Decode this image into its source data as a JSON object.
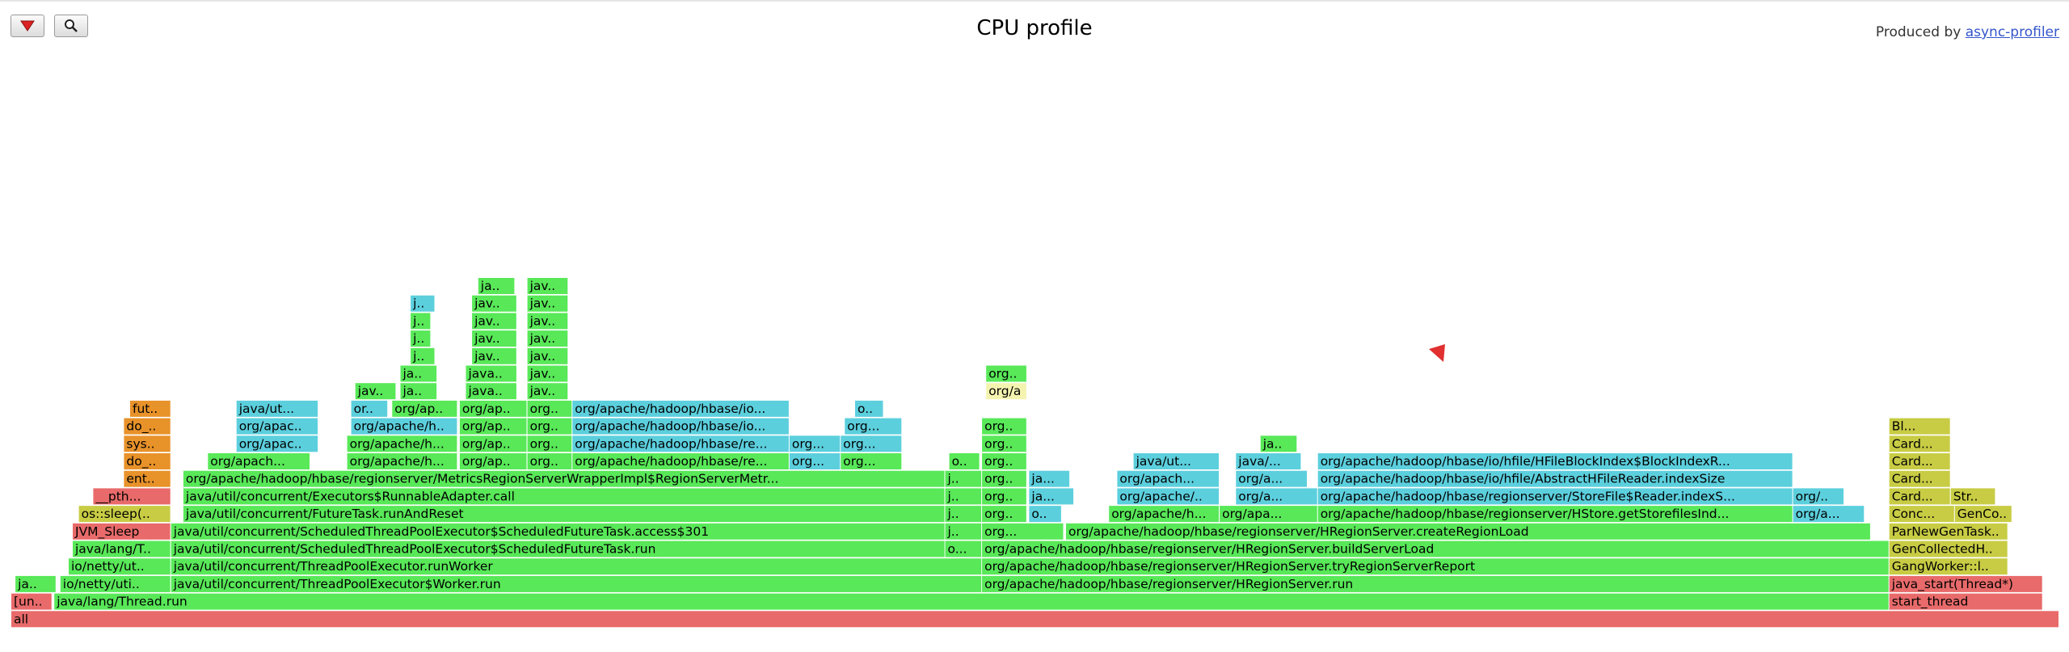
{
  "title": "CPU profile",
  "produced_by": {
    "prefix": "Produced by ",
    "link": "async-profiler"
  },
  "toolbar": {
    "reverse_icon": "reverse-triangle-icon",
    "search_icon": "magnifier-icon"
  },
  "colors": {
    "java": "#58e858",
    "aqua": "#5ccfdd",
    "native": "#e8922a",
    "kernel": "#e86a6a",
    "cpp": "#c8cc44",
    "highlight": "#f4f4b0",
    "jit": "#8ee88e"
  },
  "chart_data": {
    "type": "flamegraph",
    "unit": "samples (fraction of total width)",
    "frames": [
      {
        "d": 0,
        "s": 0.0,
        "w": 1.0,
        "n": "all",
        "c": "kernel"
      },
      {
        "d": 1,
        "s": 0.0,
        "w": 0.02,
        "n": "[un..",
        "c": "kernel"
      },
      {
        "d": 1,
        "s": 0.021,
        "w": 0.896,
        "n": "java/lang/Thread.run",
        "c": "java"
      },
      {
        "d": 1,
        "s": 0.917,
        "w": 0.075,
        "n": "start_thread",
        "c": "kernel"
      },
      {
        "d": 2,
        "s": 0.002,
        "w": 0.02,
        "n": "ja..",
        "c": "java"
      },
      {
        "d": 2,
        "s": 0.024,
        "w": 0.054,
        "n": "io/netty/uti..",
        "c": "java"
      },
      {
        "d": 2,
        "s": 0.078,
        "w": 0.396,
        "n": "java/util/concurrent/ThreadPoolExecutor$Worker.run",
        "c": "java"
      },
      {
        "d": 2,
        "s": 0.474,
        "w": 0.443,
        "n": "org/apache/hadoop/hbase/regionserver/HRegionServer.run",
        "c": "java"
      },
      {
        "d": 2,
        "s": 0.917,
        "w": 0.075,
        "n": "java_start(Thread*)",
        "c": "kernel"
      },
      {
        "d": 3,
        "s": 0.028,
        "w": 0.05,
        "n": "io/netty/ut...",
        "c": "java"
      },
      {
        "d": 3,
        "s": 0.078,
        "w": 0.396,
        "n": "java/util/concurrent/ThreadPoolExecutor.runWorker",
        "c": "java"
      },
      {
        "d": 3,
        "s": 0.474,
        "w": 0.443,
        "n": "org/apache/hadoop/hbase/regionserver/HRegionServer.tryRegionServerReport",
        "c": "java"
      },
      {
        "d": 3,
        "s": 0.917,
        "w": 0.058,
        "n": "GangWorker::l..",
        "c": "cpp"
      },
      {
        "d": 4,
        "s": 0.03,
        "w": 0.048,
        "n": "java/lang/T...",
        "c": "java"
      },
      {
        "d": 4,
        "s": 0.078,
        "w": 0.378,
        "n": "java/util/concurrent/ScheduledThreadPoolExecutor$ScheduledFutureTask.run",
        "c": "java"
      },
      {
        "d": 4,
        "s": 0.456,
        "w": 0.018,
        "n": "o...",
        "c": "java"
      },
      {
        "d": 4,
        "s": 0.474,
        "w": 0.443,
        "n": "org/apache/hadoop/hbase/regionserver/HRegionServer.buildServerLoad",
        "c": "java"
      },
      {
        "d": 4,
        "s": 0.917,
        "w": 0.058,
        "n": "GenCollectedH..",
        "c": "cpp"
      },
      {
        "d": 5,
        "s": 0.03,
        "w": 0.048,
        "n": "JVM_Sleep",
        "c": "kernel"
      },
      {
        "d": 5,
        "s": 0.078,
        "w": 0.378,
        "n": "java/util/concurrent/ScheduledThreadPoolExecutor$ScheduledFutureTask.access$301",
        "c": "java"
      },
      {
        "d": 5,
        "s": 0.456,
        "w": 0.018,
        "n": "j..",
        "c": "java"
      },
      {
        "d": 5,
        "s": 0.474,
        "w": 0.04,
        "n": "org...",
        "c": "java"
      },
      {
        "d": 5,
        "s": 0.515,
        "w": 0.393,
        "n": "org/apache/hadoop/hbase/regionserver/HRegionServer.createRegionLoad",
        "c": "java"
      },
      {
        "d": 5,
        "s": 0.917,
        "w": 0.058,
        "n": "ParNewGenTask..",
        "c": "cpp"
      },
      {
        "d": 6,
        "s": 0.033,
        "w": 0.045,
        "n": "os::sleep(...",
        "c": "cpp"
      },
      {
        "d": 6,
        "s": 0.084,
        "w": 0.372,
        "n": "java/util/concurrent/FutureTask.runAndReset",
        "c": "java"
      },
      {
        "d": 6,
        "s": 0.456,
        "w": 0.018,
        "n": "j..",
        "c": "java"
      },
      {
        "d": 6,
        "s": 0.474,
        "w": 0.022,
        "n": "org...",
        "c": "java"
      },
      {
        "d": 6,
        "s": 0.497,
        "w": 0.016,
        "n": "or...",
        "c": "aqua"
      },
      {
        "d": 6,
        "s": 0.536,
        "w": 0.054,
        "n": "org/apache/h...",
        "c": "java"
      },
      {
        "d": 6,
        "s": 0.59,
        "w": 0.048,
        "n": "org/apa...",
        "c": "java"
      },
      {
        "d": 6,
        "s": 0.638,
        "w": 0.232,
        "n": "org/apache/hadoop/hbase/regionserver/HStore.getStorefilesInd...",
        "c": "java"
      },
      {
        "d": 6,
        "s": 0.87,
        "w": 0.035,
        "n": "org/a...",
        "c": "aqua"
      },
      {
        "d": 6,
        "s": 0.917,
        "w": 0.032,
        "n": "Conc...",
        "c": "cpp"
      },
      {
        "d": 6,
        "s": 0.949,
        "w": 0.028,
        "n": "GenCol...",
        "c": "cpp"
      },
      {
        "d": 7,
        "s": 0.04,
        "w": 0.038,
        "n": "__pth...",
        "c": "kernel"
      },
      {
        "d": 7,
        "s": 0.084,
        "w": 0.372,
        "n": "java/util/concurrent/Executors$RunnableAdapter.call",
        "c": "java"
      },
      {
        "d": 7,
        "s": 0.456,
        "w": 0.018,
        "n": "j..",
        "c": "java"
      },
      {
        "d": 7,
        "s": 0.474,
        "w": 0.022,
        "n": "org...",
        "c": "java"
      },
      {
        "d": 7,
        "s": 0.497,
        "w": 0.022,
        "n": "ja...",
        "c": "aqua"
      },
      {
        "d": 7,
        "s": 0.54,
        "w": 0.05,
        "n": "org/apache/...",
        "c": "aqua"
      },
      {
        "d": 7,
        "s": 0.598,
        "w": 0.04,
        "n": "org/a...",
        "c": "aqua"
      },
      {
        "d": 7,
        "s": 0.638,
        "w": 0.232,
        "n": "org/apache/hadoop/hbase/regionserver/StoreFile$Reader.indexS...",
        "c": "aqua"
      },
      {
        "d": 7,
        "s": 0.87,
        "w": 0.025,
        "n": "org/a...",
        "c": "aqua"
      },
      {
        "d": 7,
        "s": 0.917,
        "w": 0.03,
        "n": "Card...",
        "c": "cpp"
      },
      {
        "d": 7,
        "s": 0.947,
        "w": 0.022,
        "n": "Str...",
        "c": "cpp"
      },
      {
        "d": 8,
        "s": 0.055,
        "w": 0.023,
        "n": "entr...",
        "c": "native"
      },
      {
        "d": 8,
        "s": 0.084,
        "w": 0.372,
        "n": "org/apache/hadoop/hbase/regionserver/MetricsRegionServerWrapperImpl$RegionServerMetr...",
        "c": "java"
      },
      {
        "d": 8,
        "s": 0.456,
        "w": 0.018,
        "n": "j..",
        "c": "java"
      },
      {
        "d": 8,
        "s": 0.474,
        "w": 0.022,
        "n": "org...",
        "c": "java"
      },
      {
        "d": 8,
        "s": 0.497,
        "w": 0.02,
        "n": "ja...",
        "c": "aqua"
      },
      {
        "d": 8,
        "s": 0.54,
        "w": 0.05,
        "n": "org/apach...",
        "c": "aqua"
      },
      {
        "d": 8,
        "s": 0.598,
        "w": 0.035,
        "n": "org/a...",
        "c": "aqua"
      },
      {
        "d": 8,
        "s": 0.638,
        "w": 0.232,
        "n": "org/apache/hadoop/hbase/io/hfile/AbstractHFileReader.indexSize",
        "c": "aqua"
      },
      {
        "d": 8,
        "s": 0.917,
        "w": 0.03,
        "n": "Card...",
        "c": "cpp"
      },
      {
        "d": 9,
        "s": 0.055,
        "w": 0.023,
        "n": "do_s...",
        "c": "native"
      },
      {
        "d": 9,
        "s": 0.096,
        "w": 0.05,
        "n": "org/apach...",
        "c": "java"
      },
      {
        "d": 9,
        "s": 0.164,
        "w": 0.054,
        "n": "org/apache/h...",
        "c": "java"
      },
      {
        "d": 9,
        "s": 0.219,
        "w": 0.033,
        "n": "org/ap...",
        "c": "java"
      },
      {
        "d": 9,
        "s": 0.252,
        "w": 0.022,
        "n": "org...",
        "c": "java"
      },
      {
        "d": 9,
        "s": 0.274,
        "w": 0.106,
        "n": "org/apache/hadoop/hbase/re...",
        "c": "java"
      },
      {
        "d": 9,
        "s": 0.38,
        "w": 0.025,
        "n": "org...",
        "c": "aqua"
      },
      {
        "d": 9,
        "s": 0.405,
        "w": 0.03,
        "n": "org...",
        "c": "java"
      },
      {
        "d": 9,
        "s": 0.458,
        "w": 0.015,
        "n": "o...",
        "c": "java"
      },
      {
        "d": 9,
        "s": 0.474,
        "w": 0.022,
        "n": "org...",
        "c": "java"
      },
      {
        "d": 9,
        "s": 0.548,
        "w": 0.042,
        "n": "java/ut...",
        "c": "aqua"
      },
      {
        "d": 9,
        "s": 0.598,
        "w": 0.032,
        "n": "java/...",
        "c": "aqua"
      },
      {
        "d": 9,
        "s": 0.638,
        "w": 0.232,
        "n": "org/apache/hadoop/hbase/io/hfile/HFileBlockIndex$BlockIndexR...",
        "c": "aqua"
      },
      {
        "d": 9,
        "s": 0.917,
        "w": 0.03,
        "n": "Card...",
        "c": "cpp"
      },
      {
        "d": 10,
        "s": 0.055,
        "w": 0.023,
        "n": "sys...",
        "c": "native"
      },
      {
        "d": 10,
        "s": 0.11,
        "w": 0.04,
        "n": "org/apac...",
        "c": "aqua"
      },
      {
        "d": 10,
        "s": 0.164,
        "w": 0.054,
        "n": "org/apache/h...",
        "c": "java"
      },
      {
        "d": 10,
        "s": 0.219,
        "w": 0.033,
        "n": "org/ap...",
        "c": "java"
      },
      {
        "d": 10,
        "s": 0.252,
        "w": 0.022,
        "n": "org...",
        "c": "java"
      },
      {
        "d": 10,
        "s": 0.274,
        "w": 0.106,
        "n": "org/apache/hadoop/hbase/re...",
        "c": "aqua"
      },
      {
        "d": 10,
        "s": 0.38,
        "w": 0.025,
        "n": "org...",
        "c": "aqua"
      },
      {
        "d": 10,
        "s": 0.405,
        "w": 0.03,
        "n": "org...",
        "c": "aqua"
      },
      {
        "d": 10,
        "s": 0.474,
        "w": 0.022,
        "n": "org...",
        "c": "java"
      },
      {
        "d": 10,
        "s": 0.61,
        "w": 0.018,
        "n": "ja..",
        "c": "java"
      },
      {
        "d": 10,
        "s": 0.917,
        "w": 0.03,
        "n": "Card...",
        "c": "cpp"
      },
      {
        "d": 11,
        "s": 0.055,
        "w": 0.023,
        "n": "do_...",
        "c": "native"
      },
      {
        "d": 11,
        "s": 0.11,
        "w": 0.04,
        "n": "org/apac...",
        "c": "aqua"
      },
      {
        "d": 11,
        "s": 0.166,
        "w": 0.052,
        "n": "org/apache/h...",
        "c": "aqua"
      },
      {
        "d": 11,
        "s": 0.219,
        "w": 0.033,
        "n": "org/ap...",
        "c": "java"
      },
      {
        "d": 11,
        "s": 0.252,
        "w": 0.022,
        "n": "org...",
        "c": "java"
      },
      {
        "d": 11,
        "s": 0.274,
        "w": 0.106,
        "n": "org/apache/hadoop/hbase/io...",
        "c": "aqua"
      },
      {
        "d": 11,
        "s": 0.407,
        "w": 0.028,
        "n": "org...",
        "c": "aqua"
      },
      {
        "d": 11,
        "s": 0.474,
        "w": 0.022,
        "n": "org...",
        "c": "java"
      },
      {
        "d": 11,
        "s": 0.917,
        "w": 0.03,
        "n": "Bl...",
        "c": "cpp"
      },
      {
        "d": 12,
        "s": 0.058,
        "w": 0.02,
        "n": "fut...",
        "c": "native"
      },
      {
        "d": 12,
        "s": 0.11,
        "w": 0.04,
        "n": "java/ut...",
        "c": "aqua"
      },
      {
        "d": 12,
        "s": 0.166,
        "w": 0.018,
        "n": "org...",
        "c": "aqua"
      },
      {
        "d": 12,
        "s": 0.186,
        "w": 0.032,
        "n": "org/ap...",
        "c": "java"
      },
      {
        "d": 12,
        "s": 0.219,
        "w": 0.033,
        "n": "org/ap...",
        "c": "java"
      },
      {
        "d": 12,
        "s": 0.252,
        "w": 0.022,
        "n": "org...",
        "c": "java"
      },
      {
        "d": 12,
        "s": 0.274,
        "w": 0.106,
        "n": "org/apache/hadoop/hbase/io...",
        "c": "aqua"
      },
      {
        "d": 12,
        "s": 0.412,
        "w": 0.014,
        "n": "o...",
        "c": "aqua"
      },
      {
        "d": 13,
        "s": 0.168,
        "w": 0.02,
        "n": "jav...",
        "c": "java"
      },
      {
        "d": 13,
        "s": 0.19,
        "w": 0.018,
        "n": "jav...",
        "c": "java"
      },
      {
        "d": 13,
        "s": 0.222,
        "w": 0.025,
        "n": "java/u...",
        "c": "java"
      },
      {
        "d": 13,
        "s": 0.252,
        "w": 0.02,
        "n": "jav...",
        "c": "java"
      },
      {
        "d": 13,
        "s": 0.476,
        "w": 0.02,
        "n": "org/a",
        "c": "highlight"
      },
      {
        "d": 14,
        "s": 0.19,
        "w": 0.018,
        "n": "jav...",
        "c": "java"
      },
      {
        "d": 14,
        "s": 0.222,
        "w": 0.025,
        "n": "java/u...",
        "c": "java"
      },
      {
        "d": 14,
        "s": 0.252,
        "w": 0.02,
        "n": "jav...",
        "c": "java"
      },
      {
        "d": 14,
        "s": 0.476,
        "w": 0.02,
        "n": "org...",
        "c": "java"
      },
      {
        "d": 15,
        "s": 0.195,
        "w": 0.012,
        "n": "ja..",
        "c": "java"
      },
      {
        "d": 15,
        "s": 0.225,
        "w": 0.022,
        "n": "java/...",
        "c": "java"
      },
      {
        "d": 15,
        "s": 0.252,
        "w": 0.02,
        "n": "jav...",
        "c": "java"
      },
      {
        "d": 16,
        "s": 0.195,
        "w": 0.01,
        "n": "j..",
        "c": "java"
      },
      {
        "d": 16,
        "s": 0.225,
        "w": 0.022,
        "n": "java/...",
        "c": "java"
      },
      {
        "d": 16,
        "s": 0.252,
        "w": 0.02,
        "n": "jav...",
        "c": "java"
      },
      {
        "d": 17,
        "s": 0.195,
        "w": 0.01,
        "n": "j..",
        "c": "java"
      },
      {
        "d": 17,
        "s": 0.225,
        "w": 0.022,
        "n": "java...",
        "c": "java"
      },
      {
        "d": 17,
        "s": 0.252,
        "w": 0.02,
        "n": "jav...",
        "c": "java"
      },
      {
        "d": 18,
        "s": 0.195,
        "w": 0.012,
        "n": "j..",
        "c": "aqua"
      },
      {
        "d": 18,
        "s": 0.225,
        "w": 0.022,
        "n": "java...",
        "c": "java"
      },
      {
        "d": 18,
        "s": 0.252,
        "w": 0.02,
        "n": "jav...",
        "c": "java"
      },
      {
        "d": 19,
        "s": 0.228,
        "w": 0.018,
        "n": "ja..",
        "c": "java"
      },
      {
        "d": 19,
        "s": 0.252,
        "w": 0.02,
        "n": "jav...",
        "c": "java"
      }
    ]
  }
}
